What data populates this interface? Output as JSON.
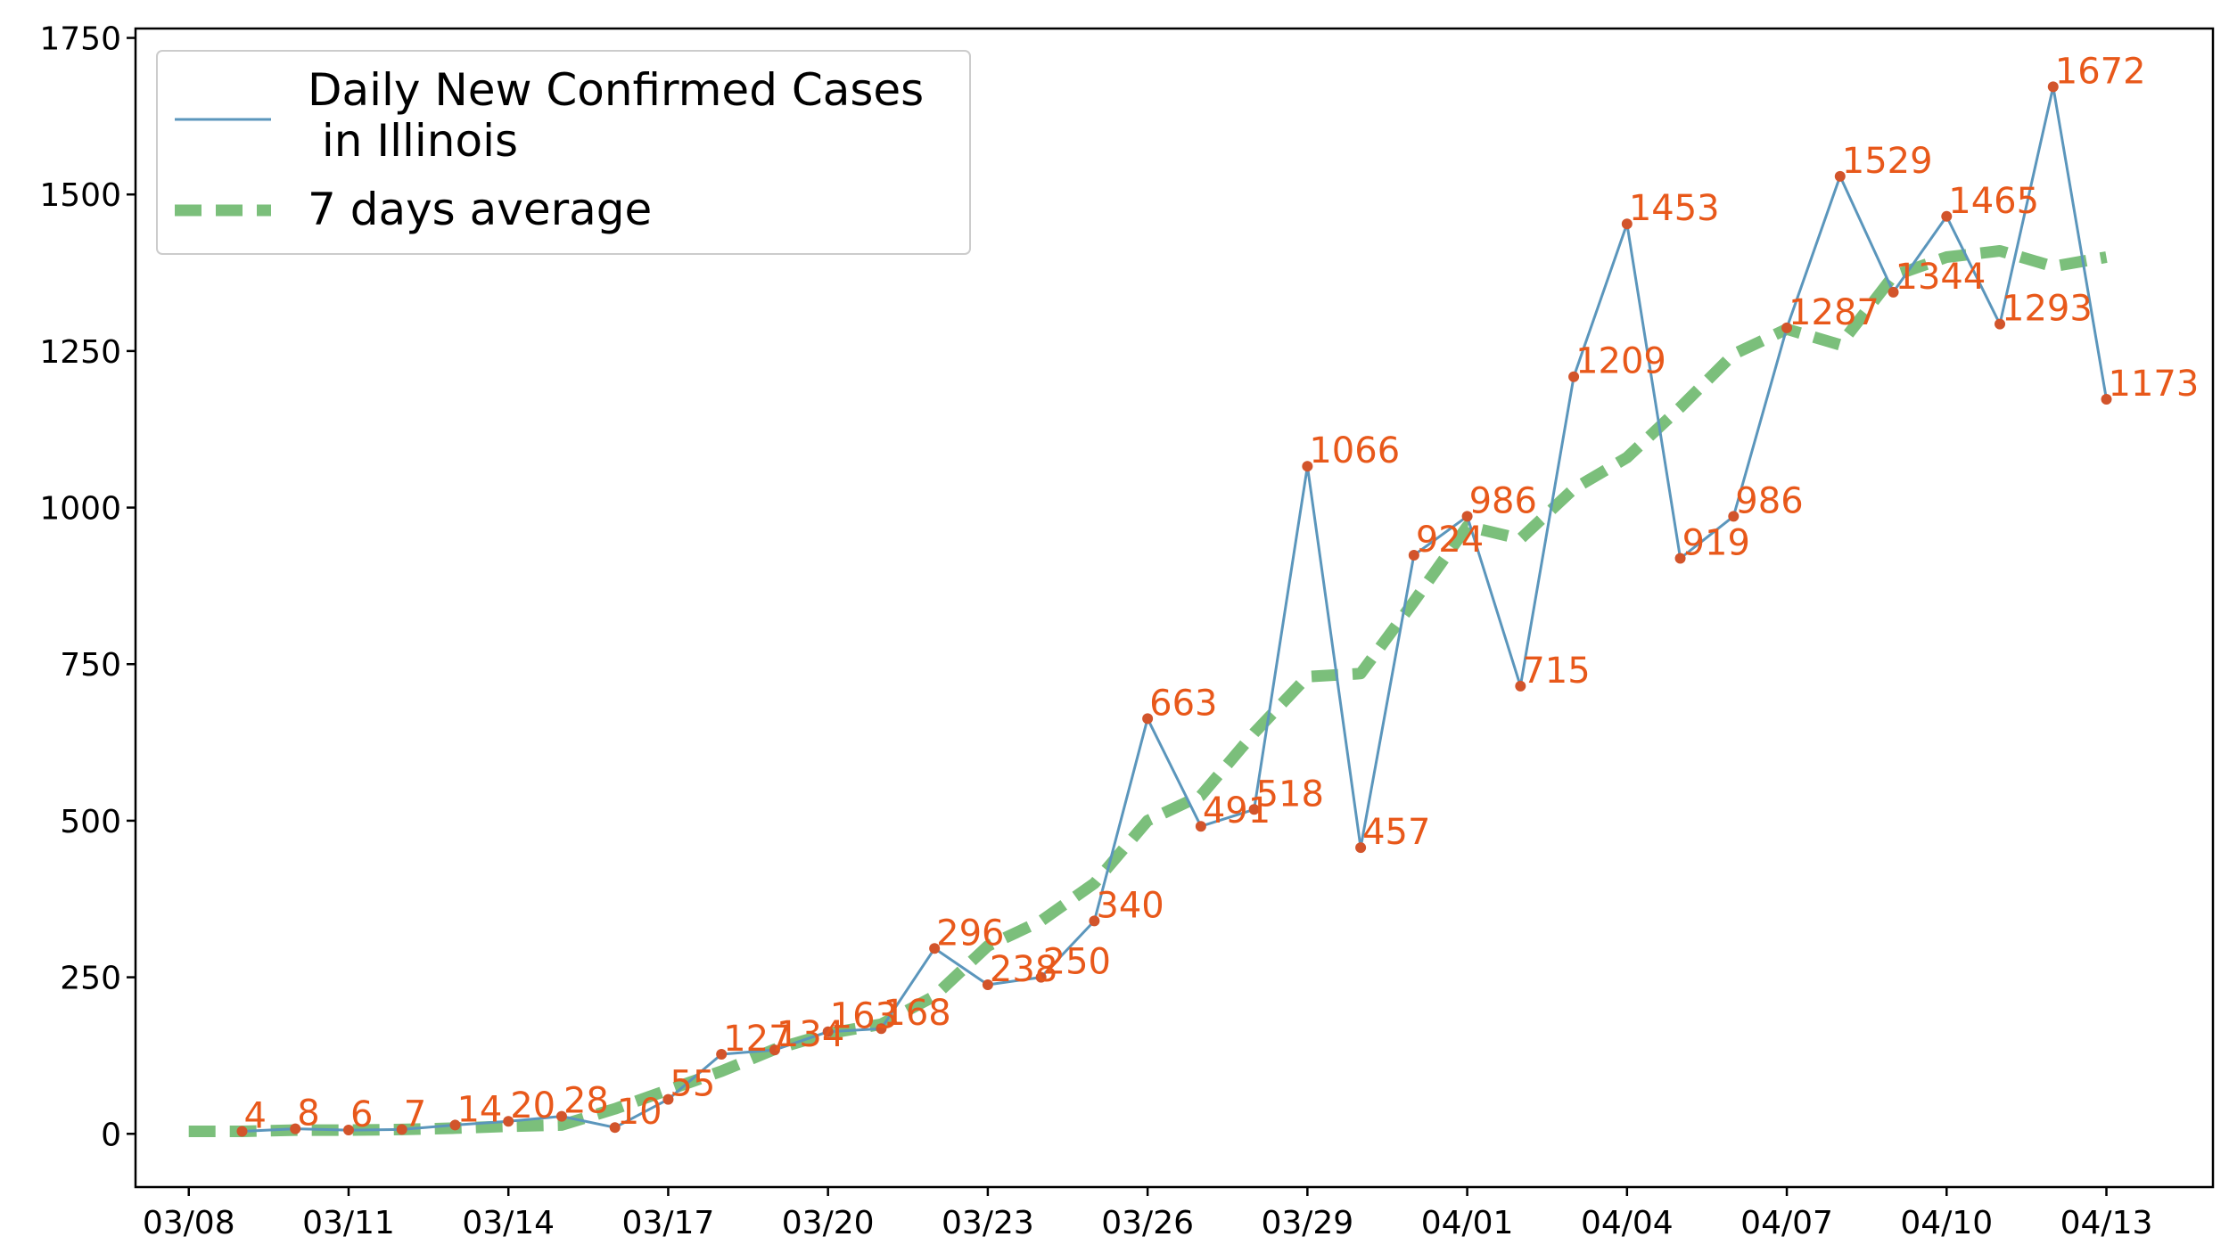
{
  "chart_data": {
    "type": "line",
    "title": "",
    "xlabel": "",
    "ylabel": "",
    "xlim": [
      "03/07",
      "04/15"
    ],
    "ylim": [
      -85,
      1765
    ],
    "x_ticks": [
      "03/08",
      "03/11",
      "03/14",
      "03/17",
      "03/20",
      "03/23",
      "03/26",
      "03/29",
      "04/01",
      "04/04",
      "04/07",
      "04/10",
      "04/13"
    ],
    "y_ticks": [
      0,
      250,
      500,
      750,
      1000,
      1250,
      1500,
      1750
    ],
    "grid": false,
    "legend": {
      "placement": "top-left",
      "entries": [
        {
          "label_line1": "Daily New Confirmed Cases",
          "label_line2": " in Illinois",
          "series": "daily"
        },
        {
          "label_line1": "7 days average",
          "series": "average"
        }
      ]
    },
    "colors": {
      "daily_line": "#5b96bc",
      "marker": "#d2542b",
      "data_label": "#e8581a",
      "average": "#7bbf7b",
      "axis": "#000000"
    },
    "series": [
      {
        "key": "daily",
        "name": "Daily New Confirmed Cases\n in Illinois",
        "x": [
          "03/09",
          "03/10",
          "03/11",
          "03/12",
          "03/13",
          "03/14",
          "03/15",
          "03/16",
          "03/17",
          "03/18",
          "03/19",
          "03/20",
          "03/21",
          "03/22",
          "03/23",
          "03/24",
          "03/25",
          "03/26",
          "03/27",
          "03/28",
          "03/29",
          "03/30",
          "03/31",
          "04/01",
          "04/02",
          "04/03",
          "04/04",
          "04/05",
          "04/06",
          "04/07",
          "04/08",
          "04/09",
          "04/10",
          "04/11",
          "04/12",
          "04/13"
        ],
        "values": [
          4,
          8,
          6,
          7,
          14,
          20,
          28,
          10,
          55,
          127,
          134,
          163,
          168,
          296,
          238,
          250,
          340,
          663,
          491,
          518,
          1066,
          457,
          924,
          986,
          715,
          1209,
          1453,
          919,
          986,
          1287,
          1529,
          1344,
          1465,
          1293,
          1672,
          1173
        ],
        "labels": [
          "4",
          "8",
          "6",
          "7",
          "14",
          "20",
          "28",
          "10",
          "55",
          "127",
          "134",
          "163",
          "168",
          "296",
          "238",
          "250",
          "340",
          "663",
          "491",
          "518",
          "1066",
          "457",
          "924",
          "986",
          "715",
          "1209",
          "1453",
          "919",
          "986",
          "1287",
          "1529",
          "1344",
          "1465",
          "1293",
          "1672",
          "1173"
        ]
      },
      {
        "key": "average",
        "name": "7 days average",
        "x": [
          "03/08",
          "03/09",
          "03/10",
          "03/11",
          "03/12",
          "03/13",
          "03/14",
          "03/15",
          "03/16",
          "03/17",
          "03/18",
          "03/19",
          "03/20",
          "03/21",
          "03/22",
          "03/23",
          "03/24",
          "03/25",
          "03/26",
          "03/27",
          "03/28",
          "03/29",
          "03/30",
          "03/31",
          "04/01",
          "04/02",
          "04/03",
          "04/04",
          "04/05",
          "04/06",
          "04/07",
          "04/08",
          "04/09",
          "04/10",
          "04/11",
          "04/12",
          "04/13"
        ],
        "values": [
          4,
          4,
          6,
          6,
          7,
          9,
          12,
          14,
          40,
          70,
          100,
          135,
          160,
          175,
          220,
          300,
          340,
          400,
          500,
          540,
          640,
          730,
          735,
          850,
          970,
          950,
          1030,
          1080,
          1160,
          1245,
          1285,
          1260,
          1370,
          1400,
          1410,
          1385,
          1400
        ]
      }
    ]
  }
}
